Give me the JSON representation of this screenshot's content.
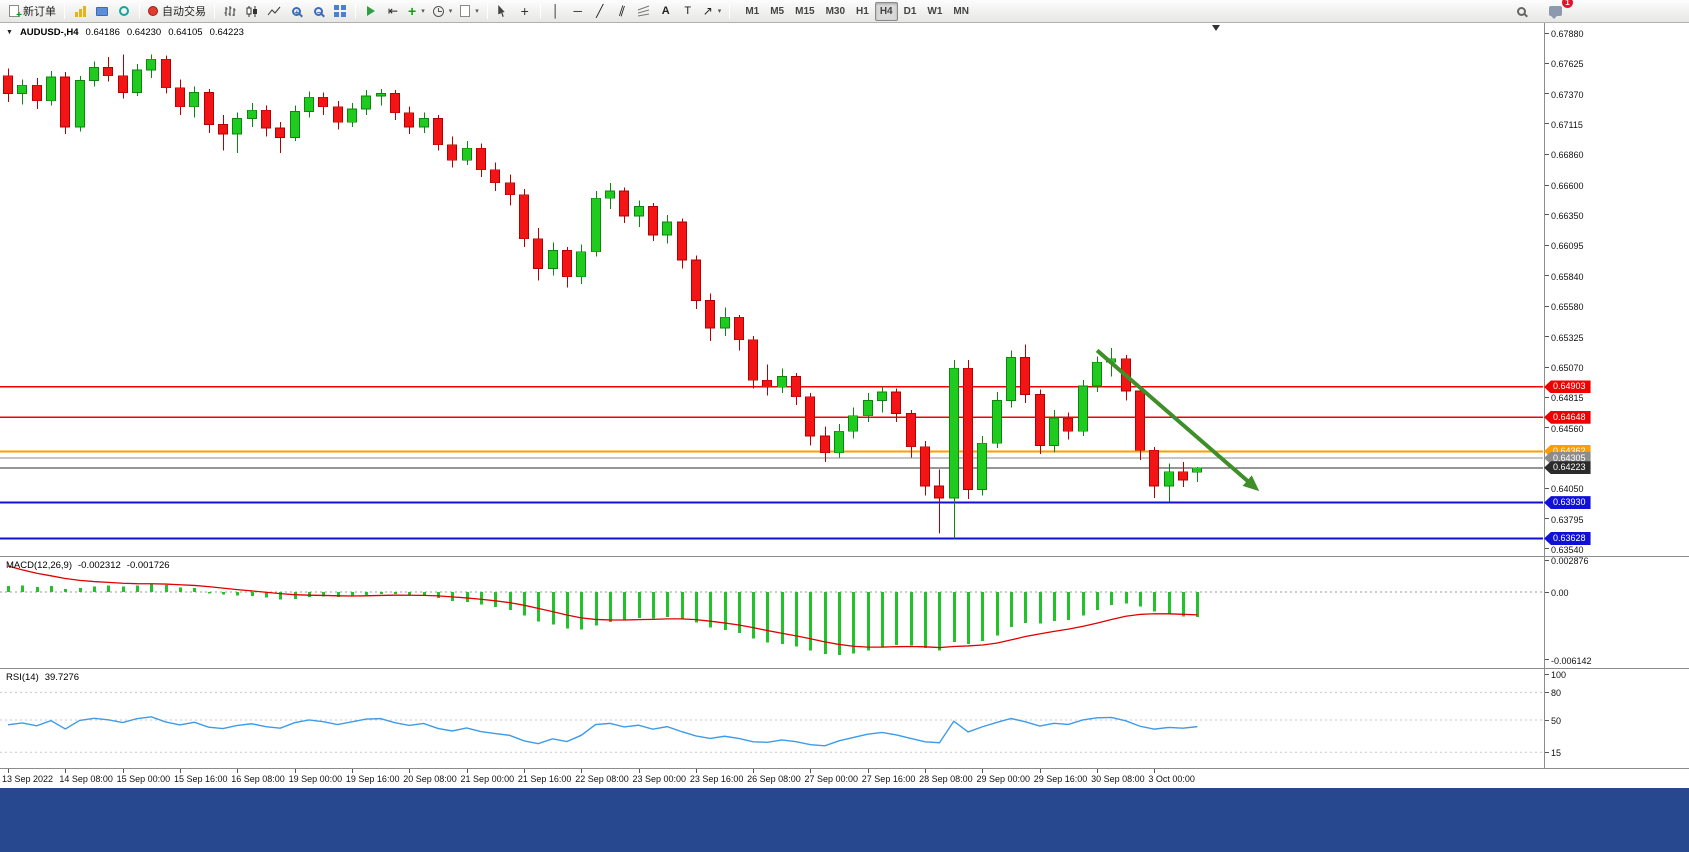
{
  "toolbar": {
    "new_order": "新订单",
    "auto_trading": "自动交易",
    "timeframes": [
      "M1",
      "M5",
      "M15",
      "M30",
      "H1",
      "H4",
      "D1",
      "W1",
      "MN"
    ],
    "active_timeframe": "H4",
    "notification_count": "1"
  },
  "glyphs": {
    "plus": "+",
    "minus": "−",
    "dropdown": "▾",
    "collapse": "▼",
    "vline": "│",
    "hline": "─",
    "trendline": "╱",
    "channel": "∥",
    "crosshair": "+",
    "text": "A",
    "text_label": "T",
    "arrows": "↗",
    "chart_shift": "⇤"
  },
  "header": {
    "symbol_period": "AUDUSD-,H4",
    "open": "0.64186",
    "high": "0.64230",
    "low": "0.64105",
    "close": "0.64223"
  },
  "colors": {
    "bull": "#1ecb1e",
    "bear": "#f31515",
    "bull_edge": "#0c860c",
    "bear_edge": "#b30000",
    "macd_hist": "#22c32a",
    "macd_signal": "#e00000",
    "rsi": "#3e9be9",
    "arrow": "#3f8f29"
  },
  "chart_data": [
    {
      "type": "candlestick",
      "symbol": "AUDUSD-",
      "period": "H4",
      "x_labels": [
        "13 Sep 2022",
        "14 Sep 08:00",
        "15 Sep 00:00",
        "15 Sep 16:00",
        "16 Sep 08:00",
        "19 Sep 00:00",
        "19 Sep 16:00",
        "20 Sep 08:00",
        "21 Sep 00:00",
        "21 Sep 16:00",
        "22 Sep 08:00",
        "23 Sep 00:00",
        "23 Sep 16:00",
        "26 Sep 08:00",
        "27 Sep 00:00",
        "27 Sep 16:00",
        "28 Sep 08:00",
        "29 Sep 00:00",
        "29 Sep 16:00",
        "30 Sep 08:00",
        "3 Oct 00:00"
      ],
      "y_ticks": [
        "0.67880",
        "0.67625",
        "0.67370",
        "0.67115",
        "0.66860",
        "0.66600",
        "0.66350",
        "0.66095",
        "0.65840",
        "0.65580",
        "0.65325",
        "0.65070",
        "0.64815",
        "0.64560",
        "0.64050",
        "0.63795",
        "0.63540"
      ],
      "ylim": [
        0.6354,
        0.6788
      ],
      "hlines": [
        {
          "price": 0.64903,
          "label": "0.64903",
          "color": "#f00000",
          "width": 1.6
        },
        {
          "price": 0.64648,
          "label": "0.64648",
          "color": "#f00000",
          "width": 1.6
        },
        {
          "price": 0.64362,
          "label": "0.64362",
          "color": "#ff9d00",
          "width": 2
        },
        {
          "price": 0.64305,
          "label": "0.64305",
          "color": "#8c8c8c",
          "width": 1
        },
        {
          "price": 0.64223,
          "label": "0.64223",
          "color": "#2b2b2b",
          "width": 1
        },
        {
          "price": 0.6393,
          "label": "0.63930",
          "color": "#1010d6",
          "width": 2
        },
        {
          "price": 0.63628,
          "label": "0.63628",
          "color": "#1010d6",
          "width": 2
        }
      ],
      "arrow": {
        "from": [
          76,
          0.6521
        ],
        "to": [
          87,
          0.6406
        ]
      },
      "candles": [
        [
          0.6752,
          0.6758,
          0.673,
          0.6737
        ],
        [
          0.6737,
          0.6749,
          0.6728,
          0.6744
        ],
        [
          0.6744,
          0.675,
          0.6724,
          0.6731
        ],
        [
          0.6731,
          0.6756,
          0.6727,
          0.6751
        ],
        [
          0.6751,
          0.6755,
          0.6703,
          0.6709
        ],
        [
          0.6709,
          0.6752,
          0.6705,
          0.6748
        ],
        [
          0.6748,
          0.6764,
          0.6743,
          0.6759
        ],
        [
          0.6759,
          0.6768,
          0.6747,
          0.6752
        ],
        [
          0.6752,
          0.677,
          0.6733,
          0.6738
        ],
        [
          0.6738,
          0.6762,
          0.6735,
          0.6757
        ],
        [
          0.6757,
          0.677,
          0.675,
          0.6766
        ],
        [
          0.6766,
          0.6769,
          0.6737,
          0.6742
        ],
        [
          0.6742,
          0.6749,
          0.6719,
          0.6726
        ],
        [
          0.6726,
          0.6743,
          0.6717,
          0.6738
        ],
        [
          0.6738,
          0.6741,
          0.6704,
          0.6711
        ],
        [
          0.6711,
          0.6719,
          0.6689,
          0.6703
        ],
        [
          0.6703,
          0.6721,
          0.6687,
          0.6716
        ],
        [
          0.6716,
          0.6729,
          0.6709,
          0.6723
        ],
        [
          0.6723,
          0.6727,
          0.6701,
          0.6708
        ],
        [
          0.6708,
          0.6713,
          0.6687,
          0.67
        ],
        [
          0.67,
          0.6727,
          0.6697,
          0.6722
        ],
        [
          0.6722,
          0.6739,
          0.6717,
          0.6734
        ],
        [
          0.6734,
          0.6738,
          0.6719,
          0.6726
        ],
        [
          0.6726,
          0.6731,
          0.6707,
          0.6713
        ],
        [
          0.6713,
          0.6729,
          0.6709,
          0.6724
        ],
        [
          0.6724,
          0.674,
          0.6719,
          0.6735
        ],
        [
          0.6735,
          0.6741,
          0.6727,
          0.6737
        ],
        [
          0.6737,
          0.674,
          0.6715,
          0.6721
        ],
        [
          0.6721,
          0.6726,
          0.6703,
          0.6709
        ],
        [
          0.6709,
          0.6721,
          0.6704,
          0.6716
        ],
        [
          0.6716,
          0.6719,
          0.6689,
          0.6694
        ],
        [
          0.6694,
          0.6701,
          0.6675,
          0.6681
        ],
        [
          0.6681,
          0.6697,
          0.6677,
          0.6691
        ],
        [
          0.6691,
          0.6695,
          0.6667,
          0.6673
        ],
        [
          0.6673,
          0.6679,
          0.6655,
          0.6662
        ],
        [
          0.6662,
          0.6669,
          0.6643,
          0.6652
        ],
        [
          0.6652,
          0.6657,
          0.6608,
          0.6615
        ],
        [
          0.6615,
          0.6624,
          0.658,
          0.659
        ],
        [
          0.659,
          0.6612,
          0.6584,
          0.6605
        ],
        [
          0.6605,
          0.6608,
          0.6574,
          0.6583
        ],
        [
          0.6583,
          0.661,
          0.6577,
          0.6604
        ],
        [
          0.6604,
          0.6655,
          0.66,
          0.6649
        ],
        [
          0.6649,
          0.6662,
          0.664,
          0.6655
        ],
        [
          0.6655,
          0.6658,
          0.6628,
          0.6634
        ],
        [
          0.6634,
          0.6647,
          0.6625,
          0.6642
        ],
        [
          0.6642,
          0.6645,
          0.6613,
          0.6618
        ],
        [
          0.6618,
          0.6635,
          0.6611,
          0.6629
        ],
        [
          0.6629,
          0.6632,
          0.659,
          0.6597
        ],
        [
          0.6597,
          0.6601,
          0.6556,
          0.6563
        ],
        [
          0.6563,
          0.6569,
          0.6529,
          0.654
        ],
        [
          0.654,
          0.6557,
          0.6533,
          0.6549
        ],
        [
          0.6549,
          0.6551,
          0.6521,
          0.653
        ],
        [
          0.653,
          0.6533,
          0.6489,
          0.6496
        ],
        [
          0.6496,
          0.6509,
          0.6483,
          0.649
        ],
        [
          0.649,
          0.6506,
          0.6485,
          0.6499
        ],
        [
          0.6499,
          0.6502,
          0.6475,
          0.6482
        ],
        [
          0.6482,
          0.6485,
          0.6441,
          0.6449
        ],
        [
          0.6449,
          0.6457,
          0.6427,
          0.6435
        ],
        [
          0.6435,
          0.6459,
          0.6431,
          0.6453
        ],
        [
          0.6453,
          0.6473,
          0.6447,
          0.6466
        ],
        [
          0.6466,
          0.6485,
          0.6461,
          0.6479
        ],
        [
          0.6479,
          0.6491,
          0.6469,
          0.6486
        ],
        [
          0.6486,
          0.6489,
          0.6461,
          0.6468
        ],
        [
          0.6468,
          0.6471,
          0.6431,
          0.644
        ],
        [
          0.644,
          0.6445,
          0.6399,
          0.6407
        ],
        [
          0.6407,
          0.6421,
          0.6367,
          0.6397
        ],
        [
          0.6397,
          0.6513,
          0.6363,
          0.6506
        ],
        [
          0.6506,
          0.6513,
          0.6396,
          0.6404
        ],
        [
          0.6404,
          0.6449,
          0.6399,
          0.6443
        ],
        [
          0.6443,
          0.6486,
          0.6439,
          0.6479
        ],
        [
          0.6479,
          0.6521,
          0.6473,
          0.6515
        ],
        [
          0.6515,
          0.6526,
          0.6477,
          0.6484
        ],
        [
          0.6484,
          0.6488,
          0.6434,
          0.6441
        ],
        [
          0.6441,
          0.6471,
          0.6435,
          0.6464
        ],
        [
          0.6464,
          0.6469,
          0.6446,
          0.6453
        ],
        [
          0.6453,
          0.6496,
          0.6449,
          0.6491
        ],
        [
          0.6491,
          0.6516,
          0.6486,
          0.6511
        ],
        [
          0.6511,
          0.6523,
          0.6499,
          0.6514
        ],
        [
          0.6514,
          0.6517,
          0.6479,
          0.6487
        ],
        [
          0.6487,
          0.6491,
          0.6429,
          0.6437
        ],
        [
          0.6437,
          0.644,
          0.6397,
          0.6407
        ],
        [
          0.6407,
          0.6426,
          0.6394,
          0.6419
        ],
        [
          0.6419,
          0.6427,
          0.6406,
          0.6412
        ],
        [
          0.64186,
          0.6423,
          0.64105,
          0.64223
        ]
      ]
    },
    {
      "type": "macd",
      "label": "MACD(12,26,9)",
      "value_main": "-0.002312",
      "value_signal": "-0.001726",
      "fast": 12,
      "slow": 26,
      "signal": 9,
      "y_ticks": [
        "0.002876",
        "0.00",
        "-0.006142"
      ],
      "ylim": [
        -0.006142,
        0.002876
      ]
    },
    {
      "type": "rsi",
      "label": "RSI(14)",
      "value": "39.7276",
      "period": 14,
      "levels": [
        100,
        80,
        50,
        15
      ]
    }
  ]
}
